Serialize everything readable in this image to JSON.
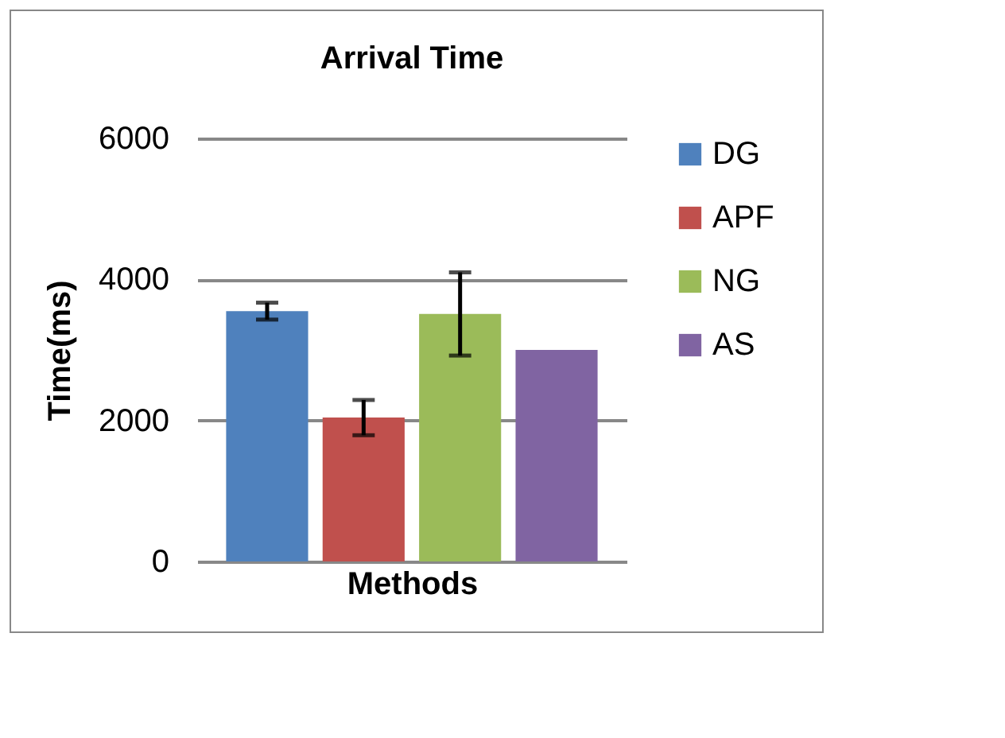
{
  "chart_data": {
    "type": "bar",
    "title": "Arrival Time",
    "xlabel": "Methods",
    "ylabel": "Time(ms)",
    "categories": [
      null
    ],
    "series": [
      {
        "name": "DG",
        "color": "#4f81bd",
        "values": [
          3550
        ],
        "errors": [
          120
        ]
      },
      {
        "name": "APF",
        "color": "#c0504d",
        "values": [
          2040
        ],
        "errors": [
          250
        ]
      },
      {
        "name": "NG",
        "color": "#9bbb59",
        "values": [
          3510
        ],
        "errors": [
          590
        ]
      },
      {
        "name": "AS",
        "color": "#8064a2",
        "values": [
          3000
        ]
      }
    ],
    "ylim": [
      0,
      6000
    ],
    "yticks": [
      0,
      2000,
      4000,
      6000
    ],
    "grid": "y",
    "legend": "right",
    "tick_labels": "y"
  }
}
